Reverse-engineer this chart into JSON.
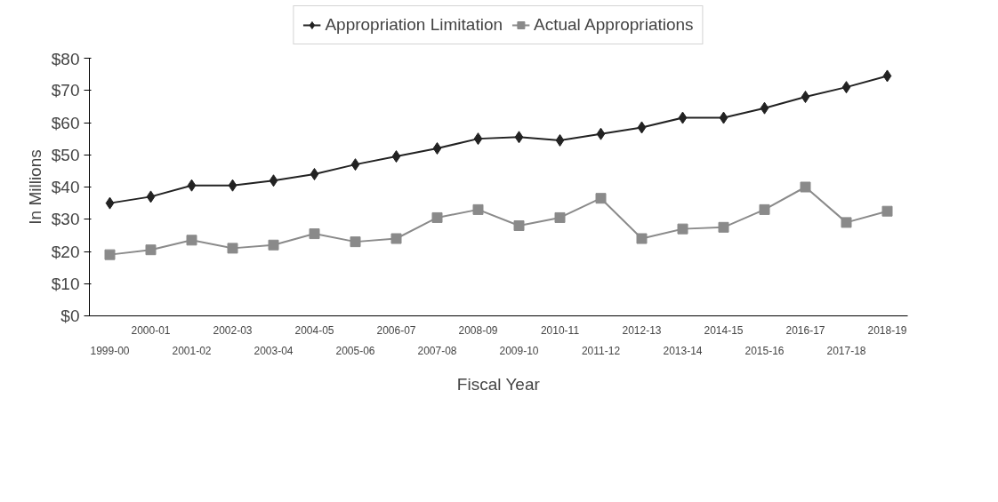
{
  "chart_data": {
    "type": "line",
    "xlabel": "Fiscal Year",
    "ylabel": "In Millions",
    "categories": [
      "1999-00",
      "2000-01",
      "2001-02",
      "2002-03",
      "2003-04",
      "2004-05",
      "2005-06",
      "2006-07",
      "2007-08",
      "2008-09",
      "2009-10",
      "2010-11",
      "2011-12",
      "2012-13",
      "2013-14",
      "2014-15",
      "2015-16",
      "2016-17",
      "2017-18",
      "2018-19"
    ],
    "series": [
      {
        "name": "Appropriation Limitation",
        "color": "#222222",
        "marker": "diamond",
        "values": [
          35,
          37,
          40.5,
          40.5,
          42,
          44,
          47,
          49.5,
          52,
          55,
          55.5,
          54.5,
          56.5,
          58.5,
          61.5,
          61.5,
          64.5,
          68,
          71,
          74.5
        ]
      },
      {
        "name": "Actual Appropriations",
        "color": "#8a8a8a",
        "marker": "square",
        "values": [
          19,
          20.5,
          23.5,
          21,
          22,
          25.5,
          23,
          24,
          30.5,
          33,
          28,
          30.5,
          36.5,
          24,
          27,
          27.5,
          33,
          40,
          29,
          32.5
        ]
      }
    ],
    "ylim": [
      0,
      80
    ],
    "yticks": [
      {
        "value": 0,
        "label": "$0"
      },
      {
        "value": 10,
        "label": "$10"
      },
      {
        "value": 20,
        "label": "$20"
      },
      {
        "value": 30,
        "label": "$30"
      },
      {
        "value": 40,
        "label": "$40"
      },
      {
        "value": 50,
        "label": "$50"
      },
      {
        "value": 60,
        "label": "$60"
      },
      {
        "value": 70,
        "label": "$70"
      },
      {
        "value": 80,
        "label": "$80"
      }
    ],
    "grid": false,
    "legend": "top"
  }
}
